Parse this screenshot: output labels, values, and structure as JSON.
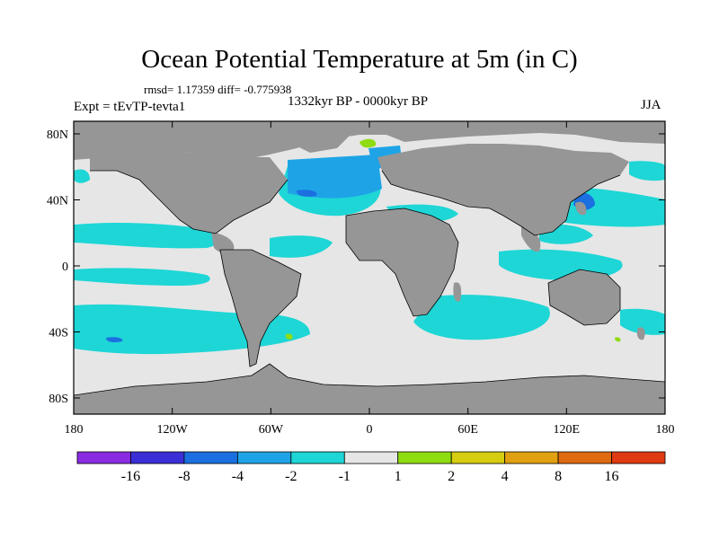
{
  "title": "Ocean Potential Temperature at 5m (in C)",
  "stats_text": "rmsd= 1.17359  diff= -0.775938",
  "experiment_label": "Expt = tEvTP-tevta1",
  "period_label": "1332kyr BP - 0000kyr BP",
  "season_label": "JJA",
  "axes": {
    "x_ticks": [
      "180",
      "120W",
      "60W",
      "0",
      "60E",
      "120E",
      "180"
    ],
    "y_ticks": [
      "80N",
      "40N",
      "0",
      "40S",
      "80S"
    ]
  },
  "colorbar": {
    "labels": [
      "-16",
      "-8",
      "-4",
      "-2",
      "-1",
      "1",
      "2",
      "4",
      "8",
      "16"
    ],
    "colors": [
      "#8a2be2",
      "#3a2fd6",
      "#1b6fe0",
      "#1ea4e6",
      "#1ed6d6",
      "#e6e6e6",
      "#8fdc10",
      "#d6cc10",
      "#e0a010",
      "#e06a10",
      "#e03a10"
    ]
  },
  "colors": {
    "land": "#969696",
    "ocean_neutral": "#e6e6e6",
    "cool_light": "#1ed6d6",
    "cool": "#1ea4e6",
    "cool_strong": "#1b6fe0"
  }
}
